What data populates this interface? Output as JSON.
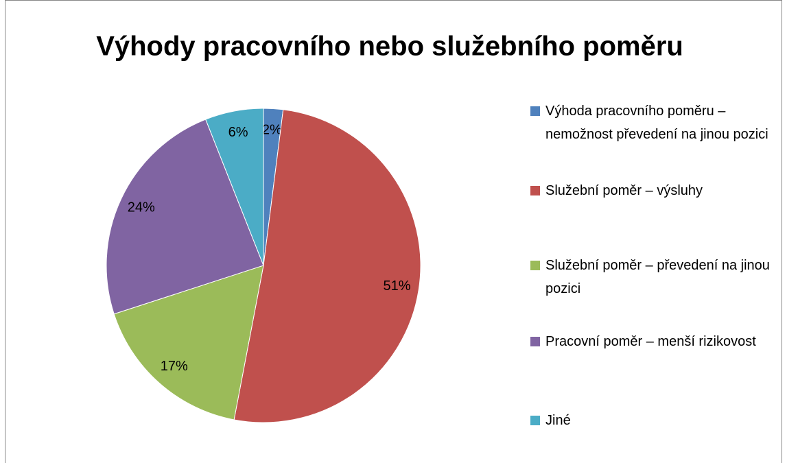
{
  "chart_data": {
    "type": "pie",
    "title": "Výhody pracovního nebo služebního poměru",
    "categories": [
      "Výhoda pracovního poměru – nemožnost převedení na jinou pozici",
      "Služební poměr – výsluhy",
      "Služební poměr – převedení na jinou pozici",
      "Pracovní poměr – menší rizikovost",
      "Jiné"
    ],
    "values": [
      2,
      51,
      17,
      24,
      6
    ],
    "value_labels": [
      "2%",
      "51%",
      "17%",
      "24%",
      "6%"
    ],
    "colors": [
      "#4f81bd",
      "#c0504d",
      "#9bbb59",
      "#8064a2",
      "#4bacc6"
    ],
    "legend": "right"
  }
}
